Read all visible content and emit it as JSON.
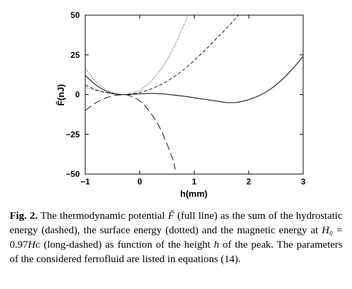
{
  "chart_data": {
    "type": "line",
    "xlabel": "h(mm)",
    "ylabel": "F̃(nJ)",
    "xlim": [
      -1,
      3
    ],
    "ylim": [
      -50,
      50
    ],
    "xticks": [
      "−1",
      "0",
      "1",
      "2",
      "3"
    ],
    "yticks": [
      "50",
      "25",
      "0",
      "−25",
      "−50"
    ],
    "grid": false,
    "series": [
      {
        "style": "solid",
        "x": [
          -1.0,
          -0.8,
          -0.6,
          -0.4,
          -0.3,
          -0.2,
          0.0,
          0.2,
          0.4,
          0.6,
          0.8,
          1.0,
          1.2,
          1.4,
          1.6,
          1.7,
          1.8,
          2.0,
          2.2,
          2.4,
          2.6,
          2.8,
          3.0
        ],
        "y": [
          12,
          6,
          2,
          0,
          0,
          0,
          0.5,
          0.8,
          0.5,
          -0.2,
          -1,
          -2,
          -3,
          -4,
          -5,
          -5,
          -4.8,
          -3.2,
          -0.5,
          3.5,
          9,
          16,
          24
        ]
      },
      {
        "style": "dashed",
        "x": [
          -1.0,
          -0.8,
          -0.6,
          -0.4,
          -0.3,
          -0.2,
          0.0,
          0.2,
          0.4,
          0.6,
          0.8,
          1.0,
          1.2,
          1.4,
          1.6,
          1.8,
          1.9
        ],
        "y": [
          6,
          3,
          1.2,
          0.2,
          0,
          0.2,
          1.3,
          3.5,
          6.5,
          10.5,
          15.5,
          21.5,
          28,
          35,
          42,
          49.5,
          53
        ]
      },
      {
        "style": "dotted",
        "x": [
          -1.0,
          -0.8,
          -0.6,
          -0.4,
          -0.3,
          -0.2,
          0.0,
          0.2,
          0.4,
          0.6,
          0.8,
          0.9
        ],
        "y": [
          4.5,
          2.6,
          1.1,
          0.2,
          0,
          0.4,
          2.8,
          8.2,
          16.5,
          28,
          43,
          51
        ]
      },
      {
        "style": "long-dashed",
        "x": [
          -1.0,
          -0.8,
          -0.6,
          -0.4,
          -0.3,
          -0.2,
          0.0,
          0.2,
          0.4,
          0.6,
          0.65
        ],
        "y": [
          -10,
          -5,
          -1.8,
          -0.2,
          0,
          -0.5,
          -4,
          -11.5,
          -23,
          -40,
          -47
        ]
      },
      {
        "style": "dotted",
        "x": [
          -1.0,
          -0.9,
          -0.8,
          -0.7,
          -0.6,
          -0.5,
          -0.4,
          -0.3
        ],
        "y": [
          17,
          12,
          8,
          5,
          3,
          1.4,
          0.4,
          0
        ]
      }
    ]
  },
  "caption": {
    "label": "Fig. 2.",
    "line1": "The thermodynamic potential",
    "symbol_F": "F̃",
    "line1b": "(full line) as the sum",
    "line2": "of the hydrostatic energy (dashed), the surface energy (dotted)",
    "line3a": "and the magnetic energy at",
    "H0": "H₀",
    "eq": " = 0.97",
    "Hc": "Hᴄ",
    "line3b": "(long-dashed) as",
    "line4a": "function of the height",
    "h": "h",
    "line4b": "of the peak. The parameters of the",
    "line5": "considered ferrofluid are listed in equations (14)."
  }
}
